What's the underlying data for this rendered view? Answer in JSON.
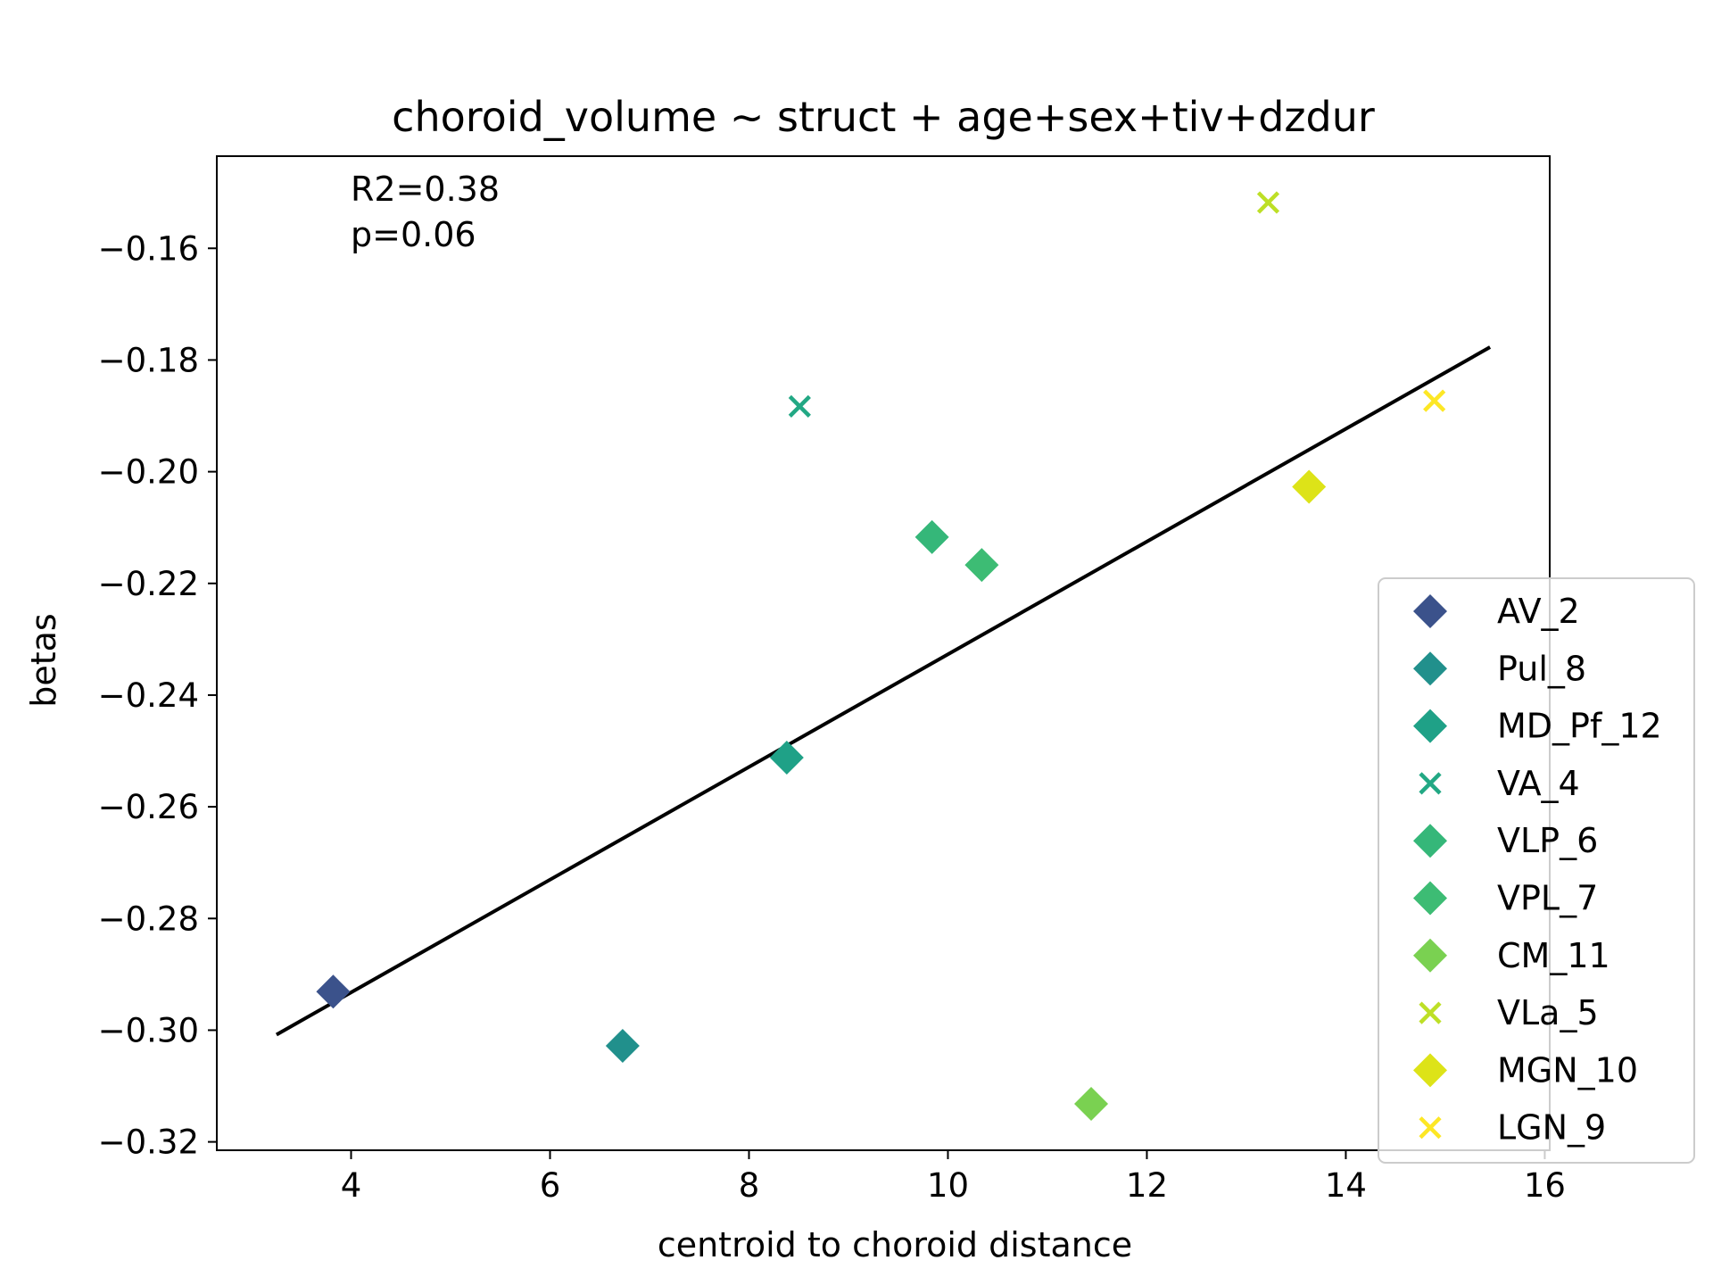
{
  "chart_data": {
    "type": "scatter",
    "title": "choroid_volume ~ struct + age+sex+tiv+dzdur",
    "xlabel": "centroid to choroid distance",
    "ylabel": "betas",
    "xlim": [
      2.65,
      16.05
    ],
    "ylim": [
      -0.3215,
      -0.1435
    ],
    "xticks": [
      4,
      6,
      8,
      10,
      12,
      14,
      16
    ],
    "xtick_labels": [
      "4",
      "6",
      "8",
      "10",
      "12",
      "14",
      "16"
    ],
    "yticks": [
      -0.32,
      -0.3,
      -0.28,
      -0.26,
      -0.24,
      -0.22,
      -0.2,
      -0.18,
      -0.16
    ],
    "ytick_labels": [
      "−0.32",
      "−0.30",
      "−0.28",
      "−0.26",
      "−0.24",
      "−0.22",
      "−0.20",
      "−0.18",
      "−0.16"
    ],
    "grid": false,
    "legend_position": "right",
    "annotations": [
      "R2=0.38",
      "p=0.06"
    ],
    "series": [
      {
        "name": "AV_2",
        "marker": "diamond",
        "color": "#3b528b",
        "x": 3.82,
        "y": -0.2931
      },
      {
        "name": "Pul_8",
        "marker": "diamond",
        "color": "#21908c",
        "x": 6.73,
        "y": -0.3028
      },
      {
        "name": "MD_Pf_12",
        "marker": "diamond",
        "color": "#1fa187",
        "x": 8.38,
        "y": -0.2512
      },
      {
        "name": "VA_4",
        "marker": "x",
        "color": "#22a884",
        "x": 8.51,
        "y": -0.1883
      },
      {
        "name": "VLP_6",
        "marker": "diamond",
        "color": "#35b779",
        "x": 9.84,
        "y": -0.2117
      },
      {
        "name": "VPL_7",
        "marker": "diamond",
        "color": "#3dbc74",
        "x": 10.34,
        "y": -0.2167
      },
      {
        "name": "CM_11",
        "marker": "diamond",
        "color": "#7ad151",
        "x": 11.44,
        "y": -0.3132
      },
      {
        "name": "VLa_5",
        "marker": "x",
        "color": "#bddf26",
        "x": 13.22,
        "y": -0.1518
      },
      {
        "name": "MGN_10",
        "marker": "diamond",
        "color": "#dde318",
        "x": 13.63,
        "y": -0.2027
      },
      {
        "name": "LGN_9",
        "marker": "x",
        "color": "#fde725",
        "x": 14.89,
        "y": -0.1873
      }
    ],
    "regression_line": {
      "color": "#000000",
      "x": [
        3.25,
        15.45
      ],
      "y": [
        -0.3008,
        -0.1777
      ]
    }
  }
}
